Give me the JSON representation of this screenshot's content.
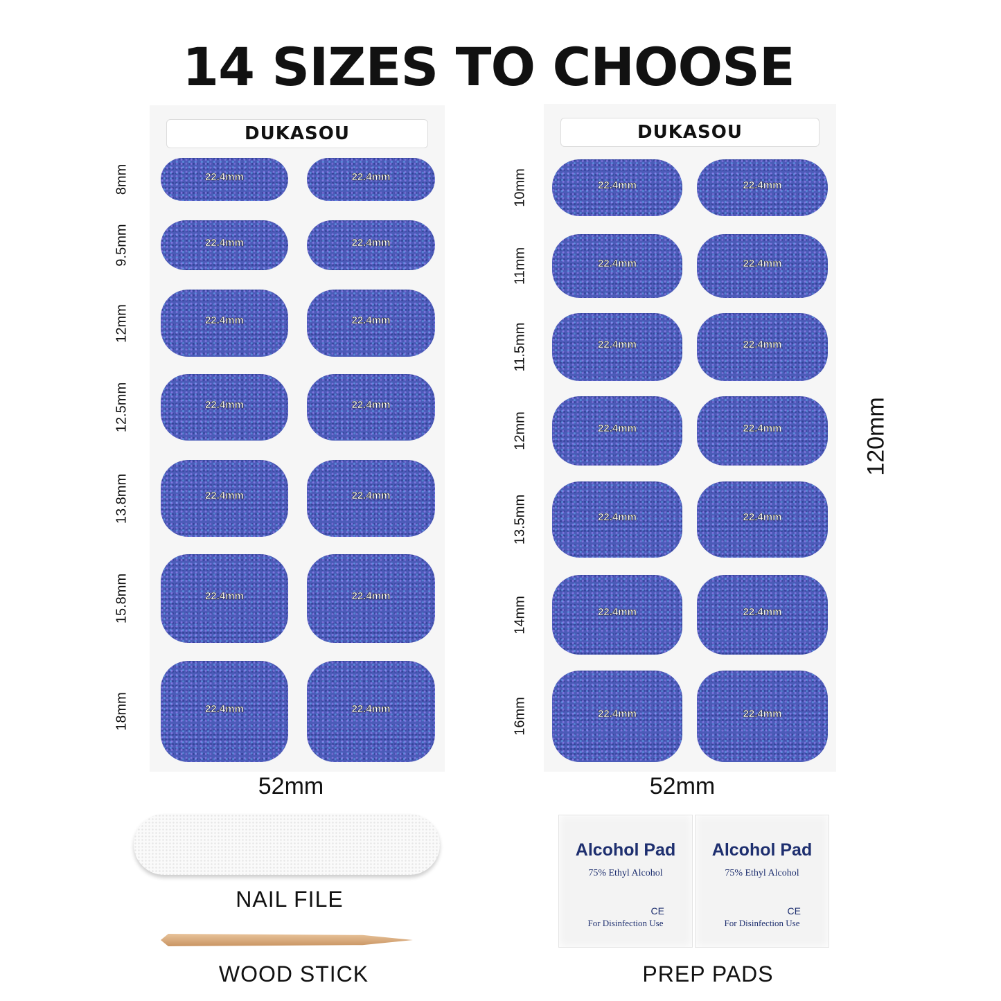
{
  "title": "14 SIZES TO CHOOSE",
  "brand": "DUKASOU",
  "nail_length_label": "22.4mm",
  "left_sheet": {
    "width_label": "52mm",
    "sizes": [
      "8mm",
      "9.5mm",
      "12mm",
      "12.5mm",
      "13.8mm",
      "15.8mm",
      "18mm"
    ]
  },
  "right_sheet": {
    "width_label": "52mm",
    "height_label": "120mm",
    "sizes": [
      "10mm",
      "11mm",
      "11.5mm",
      "12mm",
      "13.5mm",
      "14mm",
      "16mm"
    ]
  },
  "accessories": {
    "nail_file": "NAIL FILE",
    "wood_stick": "WOOD STICK",
    "prep_pads": "PREP PADS"
  },
  "pad": {
    "title": "Alcohol  Pad",
    "subtitle": "75% Ethyl Alcohol",
    "mark": "CE",
    "usage": "For Disinfection Use"
  },
  "colors": {
    "nail": "#4b5bb8",
    "pad_text": "#1e2f6f"
  }
}
